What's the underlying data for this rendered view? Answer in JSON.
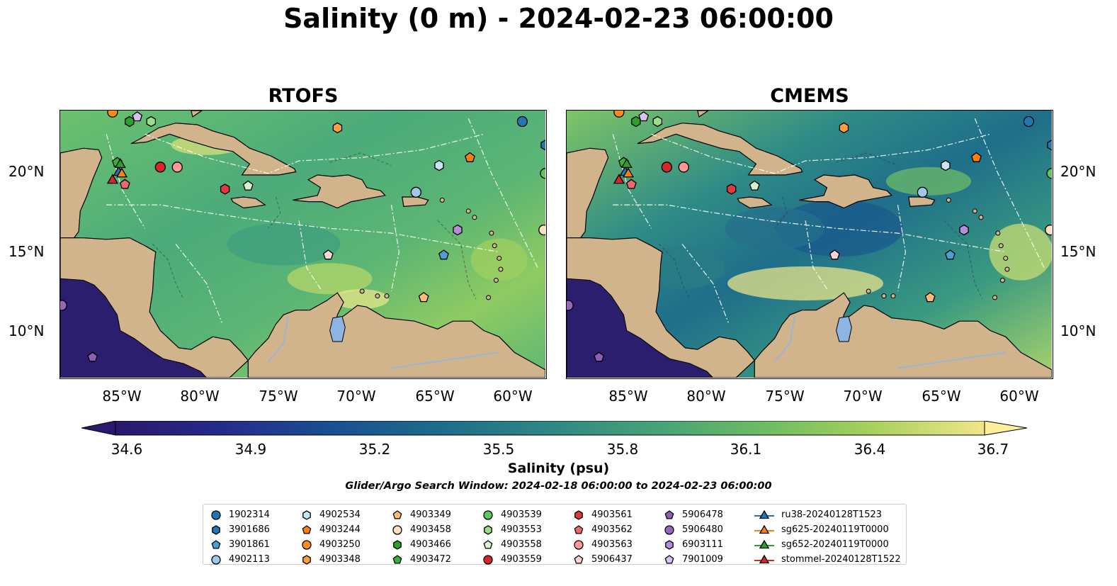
{
  "title": "Salinity (0 m) - 2024-02-23 06:00:00",
  "panels": [
    {
      "title": "RTOFS"
    },
    {
      "title": "CMEMS"
    }
  ],
  "lat_labels": [
    "20°N",
    "15°N",
    "10°N"
  ],
  "lon_labels": [
    "85°W",
    "80°W",
    "75°W",
    "70°W",
    "65°W",
    "60°W"
  ],
  "map_extent": {
    "lon": [
      -89.5,
      -58.0
    ],
    "lat": [
      7.0,
      24.0
    ]
  },
  "colors": {
    "land": "#d2b48c",
    "lake": "#8eb4e3",
    "pacific": "#2b1e6e",
    "rtofs_sea": "#5db877",
    "cmems_sea": "#3a8f87"
  },
  "colorbar": {
    "label": "Salinity (psu)",
    "ticks": [
      "34.6",
      "34.9",
      "35.2",
      "35.5",
      "35.8",
      "36.1",
      "36.4",
      "36.7"
    ],
    "range": [
      34.6,
      36.7
    ],
    "colormap": "haline",
    "stops": [
      "#2a186c",
      "#1f3b8f",
      "#155f8a",
      "#2b7e87",
      "#3a9a79",
      "#5cb467",
      "#98cc5c",
      "#e3e480",
      "#fdee99"
    ],
    "extend": "both"
  },
  "search_window": "Glider/Argo Search Window: 2024-02-18 06:00:00 to 2024-02-23 06:00:00",
  "legend_columns": [
    [
      {
        "label": "1902314",
        "marker": "circle",
        "color": "#1f77b4"
      },
      {
        "label": "3901686",
        "marker": "hexagon",
        "color": "#1f77b4"
      },
      {
        "label": "3901861",
        "marker": "pentagon",
        "color": "#4c9fd6"
      },
      {
        "label": "4902113",
        "marker": "circle",
        "color": "#9ecae9"
      }
    ],
    [
      {
        "label": "4902534",
        "marker": "hexagon",
        "color": "#c6e6f7"
      },
      {
        "label": "4903244",
        "marker": "pentagon",
        "color": "#ff7f0e"
      },
      {
        "label": "4903250",
        "marker": "circle",
        "color": "#ff8c1a"
      },
      {
        "label": "4903348",
        "marker": "hexagon",
        "color": "#ffa040"
      }
    ],
    [
      {
        "label": "4903349",
        "marker": "pentagon",
        "color": "#ffbb78"
      },
      {
        "label": "4903458",
        "marker": "circle",
        "color": "#ffdfc0"
      },
      {
        "label": "4903466",
        "marker": "hexagon",
        "color": "#2ca02c"
      },
      {
        "label": "4903472",
        "marker": "pentagon",
        "color": "#38b038"
      }
    ],
    [
      {
        "label": "4903539",
        "marker": "circle",
        "color": "#5cc75c"
      },
      {
        "label": "4903553",
        "marker": "hexagon",
        "color": "#98df8a"
      },
      {
        "label": "4903558",
        "marker": "pentagon",
        "color": "#d4f5cc"
      },
      {
        "label": "4903559",
        "marker": "circle",
        "color": "#d62728"
      }
    ],
    [
      {
        "label": "4903561",
        "marker": "hexagon",
        "color": "#e03a3a"
      },
      {
        "label": "4903562",
        "marker": "pentagon",
        "color": "#ee6a6a"
      },
      {
        "label": "4903563",
        "marker": "circle",
        "color": "#ff9896"
      },
      {
        "label": "5906437",
        "marker": "pentagon",
        "color": "#ffd5d3"
      }
    ],
    [
      {
        "label": "5906478",
        "marker": "pentagon",
        "color": "#8c5fb0"
      },
      {
        "label": "5906480",
        "marker": "circle",
        "color": "#9467bd"
      },
      {
        "label": "6903111",
        "marker": "hexagon",
        "color": "#b48ddb"
      },
      {
        "label": "7901009",
        "marker": "pentagon",
        "color": "#d8c2f2"
      }
    ],
    [
      {
        "label": "ru38-20240128T1523",
        "marker": "triangle-line",
        "color": "#1f77b4"
      },
      {
        "label": "sg625-20240119T0000",
        "marker": "triangle-line",
        "color": "#ff7f0e"
      },
      {
        "label": "sg652-20240119T0000",
        "marker": "triangle-line",
        "color": "#2ca02c"
      },
      {
        "label": "stommel-20240128T1522",
        "marker": "triangle-line",
        "color": "#d62728"
      }
    ]
  ],
  "floats": [
    {
      "id": "1902314",
      "lon": -59.5,
      "lat": 23.3
    },
    {
      "id": "3901686",
      "lon": -58.0,
      "lat": 21.8
    },
    {
      "id": "3901861",
      "lon": -64.6,
      "lat": 14.8
    },
    {
      "id": "4902113",
      "lon": -66.4,
      "lat": 18.8
    },
    {
      "id": "4902534",
      "lon": -64.9,
      "lat": 20.5
    },
    {
      "id": "4903244",
      "lon": -62.9,
      "lat": 21.0
    },
    {
      "id": "4903250",
      "lon": -86.1,
      "lat": 23.9
    },
    {
      "id": "4903348",
      "lon": -71.5,
      "lat": 22.9
    },
    {
      "id": "4903349",
      "lon": -65.9,
      "lat": 12.1
    },
    {
      "id": "4903458",
      "lon": -58.1,
      "lat": 16.4
    },
    {
      "id": "4903466",
      "lon": -85.0,
      "lat": 23.3
    },
    {
      "id": "4903472",
      "lon": -85.8,
      "lat": 20.7
    },
    {
      "id": "4903539",
      "lon": -58.0,
      "lat": 20.0
    },
    {
      "id": "4903553",
      "lon": -83.6,
      "lat": 23.3
    },
    {
      "id": "4903558",
      "lon": -77.3,
      "lat": 19.2
    },
    {
      "id": "4903559",
      "lon": -83.0,
      "lat": 20.4
    },
    {
      "id": "4903561",
      "lon": -78.8,
      "lat": 19.0
    },
    {
      "id": "4903562",
      "lon": -85.3,
      "lat": 19.3
    },
    {
      "id": "4903563",
      "lon": -81.9,
      "lat": 20.4
    },
    {
      "id": "5906437",
      "lon": -72.1,
      "lat": 14.8
    },
    {
      "id": "5906478",
      "lon": -87.4,
      "lat": 8.3
    },
    {
      "id": "5906480",
      "lon": -89.4,
      "lat": 11.6
    },
    {
      "id": "6903111",
      "lon": -63.7,
      "lat": 16.4
    },
    {
      "id": "7901009",
      "lon": -84.5,
      "lat": 23.6
    }
  ],
  "gliders": [
    {
      "id": "ru38-20240128T1523",
      "lon": -85.7,
      "lat": 20.1
    },
    {
      "id": "sg625-20240119T0000",
      "lon": -85.5,
      "lat": 20.0
    },
    {
      "id": "sg652-20240119T0000",
      "lon": -85.6,
      "lat": 20.6
    },
    {
      "id": "stommel-20240128T1522",
      "lon": -86.1,
      "lat": 19.6
    }
  ]
}
